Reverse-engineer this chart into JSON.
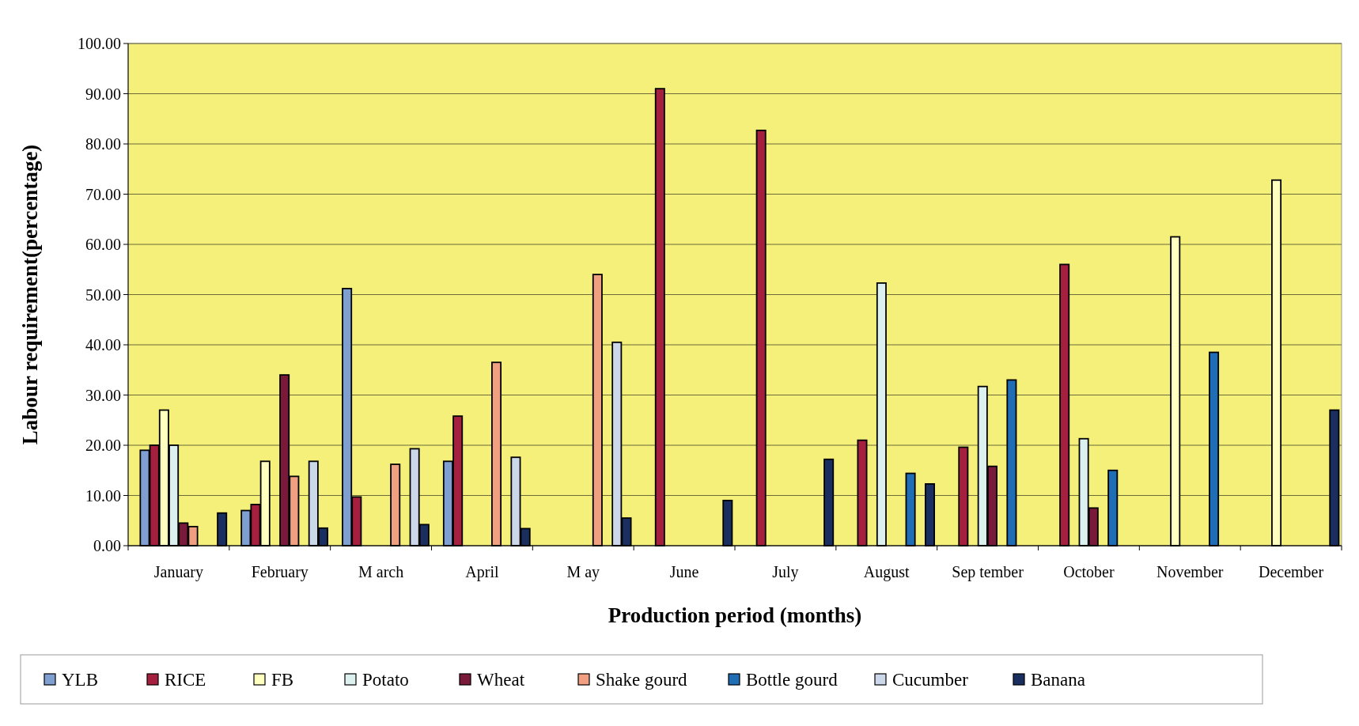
{
  "chart_data": {
    "type": "bar",
    "xlabel": "Production period (months)",
    "ylabel": "Labour requirement(percentage)",
    "categories": [
      "January",
      "February",
      "M arch",
      "April",
      "M ay",
      "June",
      "July",
      "August",
      "Sep tember",
      "October",
      "November",
      "December"
    ],
    "series": [
      {
        "name": "YLB",
        "color": "#7f9fd0",
        "values": [
          19,
          7,
          51.2,
          16.8,
          null,
          null,
          null,
          null,
          null,
          null,
          null,
          null
        ]
      },
      {
        "name": "RICE",
        "color": "#a5203f",
        "values": [
          20,
          8.2,
          9.7,
          25.8,
          null,
          91,
          82.7,
          21,
          19.6,
          56,
          null,
          null
        ]
      },
      {
        "name": "FB",
        "color": "#ffffc0",
        "values": [
          27,
          16.8,
          null,
          null,
          null,
          null,
          null,
          null,
          null,
          null,
          61.5,
          72.8
        ]
      },
      {
        "name": "Potato",
        "color": "#dcf0f0",
        "values": [
          20,
          null,
          null,
          null,
          null,
          null,
          null,
          52.3,
          31.7,
          21.3,
          null,
          null
        ]
      },
      {
        "name": "Wheat",
        "color": "#7a1a3a",
        "values": [
          4.5,
          34,
          null,
          null,
          null,
          null,
          null,
          null,
          15.8,
          7.5,
          null,
          null
        ]
      },
      {
        "name": "Shake gourd",
        "color": "#f0a080",
        "values": [
          3.8,
          13.8,
          16.2,
          36.5,
          54,
          null,
          null,
          null,
          null,
          null,
          null,
          null
        ]
      },
      {
        "name": "Bottle gourd",
        "color": "#1f6db5",
        "values": [
          null,
          null,
          null,
          null,
          null,
          null,
          null,
          14.4,
          33,
          15,
          38.5,
          null
        ]
      },
      {
        "name": "Cucumber",
        "color": "#ccd8ea",
        "values": [
          null,
          16.8,
          19.3,
          17.6,
          40.5,
          null,
          null,
          null,
          null,
          null,
          null,
          null
        ]
      },
      {
        "name": "Banana",
        "color": "#1a2f60",
        "values": [
          6.5,
          3.5,
          4.2,
          3.4,
          5.5,
          9,
          17.2,
          12.3,
          null,
          null,
          null,
          27
        ]
      }
    ],
    "ylim": [
      0,
      100
    ],
    "yticks": [
      {
        "value": 0,
        "label": "0.00"
      },
      {
        "value": 10,
        "label": "10.00"
      },
      {
        "value": 20,
        "label": "20.00"
      },
      {
        "value": 30,
        "label": "30.00"
      },
      {
        "value": 40,
        "label": "40.00"
      },
      {
        "value": 50,
        "label": "50.00"
      },
      {
        "value": 60,
        "label": "60.00"
      },
      {
        "value": 70,
        "label": "70.00"
      },
      {
        "value": 80,
        "label": "80.00"
      },
      {
        "value": 90,
        "label": "90.00"
      },
      {
        "value": 100,
        "label": "100.00"
      }
    ],
    "grid": "y",
    "legend": "bottom"
  }
}
